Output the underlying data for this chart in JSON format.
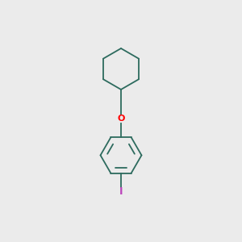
{
  "background_color": "#ebebeb",
  "bond_color": "#2d6b5e",
  "oxygen_color": "#ff0000",
  "iodine_color": "#bb44bb",
  "line_width": 1.3,
  "fig_size": [
    3.0,
    3.0
  ],
  "dpi": 100
}
